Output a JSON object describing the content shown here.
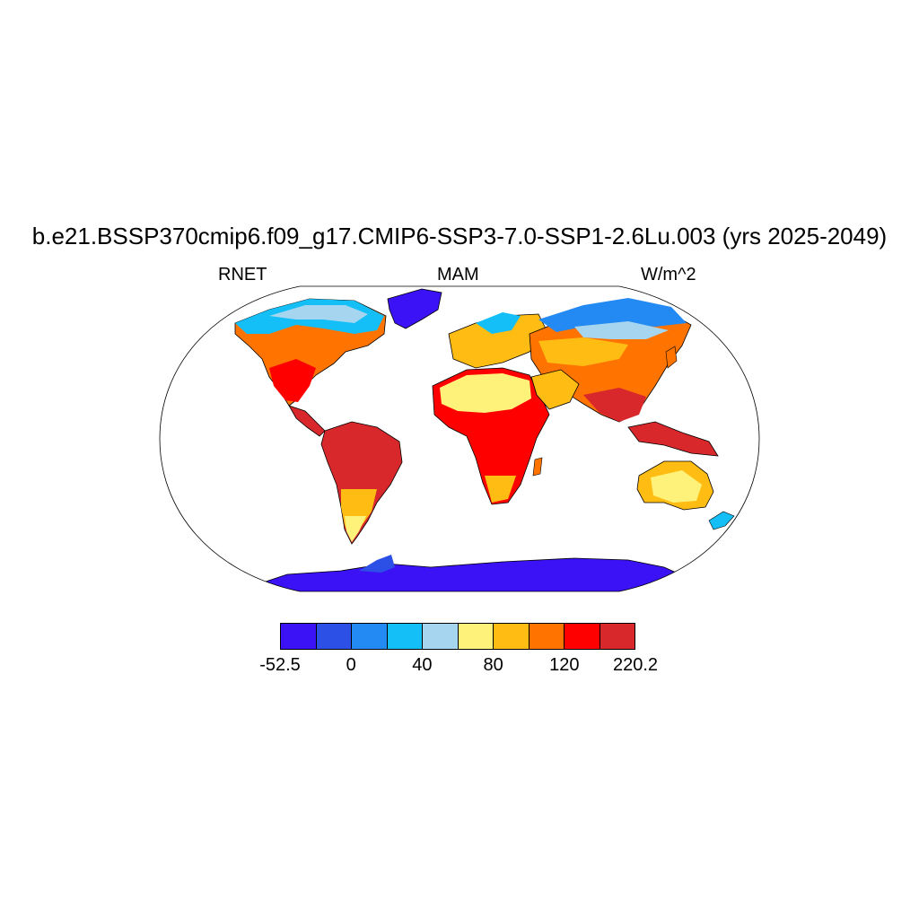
{
  "title": "b.e21.BSSP370cmip6.f09_g17.CMIP6-SSP3-7.0-SSP1-2.6Lu.003 (yrs 2025-2049)",
  "left_label": "RNET",
  "center_label": "MAM",
  "right_label": "W/m^2",
  "colorbar": {
    "colors": [
      "#3b12f5",
      "#2c4fe6",
      "#2389f3",
      "#13bff6",
      "#a6d6ef",
      "#fff27a",
      "#ffbd14",
      "#ff7300",
      "#ff0000",
      "#d8282c"
    ],
    "labels": [
      {
        "text": "-52.5",
        "boundary": 0
      },
      {
        "text": "0",
        "boundary": 2
      },
      {
        "text": "40",
        "boundary": 4
      },
      {
        "text": "80",
        "boundary": 6
      },
      {
        "text": "120",
        "boundary": 8
      },
      {
        "text": "220.2",
        "boundary": 10
      }
    ]
  },
  "map": {
    "projection": "robinson",
    "ocean_fill": "#ffffff",
    "coastline_color": "#000000"
  }
}
